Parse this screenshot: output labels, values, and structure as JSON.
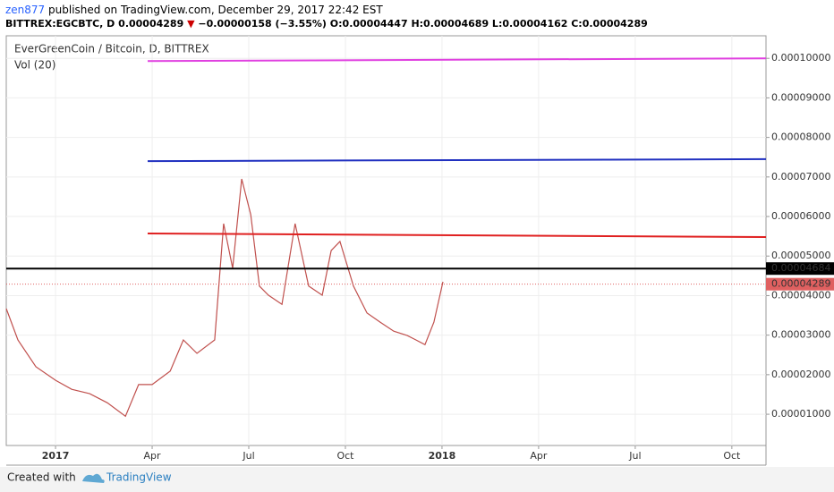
{
  "header": {
    "user": "zen877",
    "published": "published on TradingView.com, December 29, 2017 22:42 EST",
    "symbol": "BITTREX:EGCBTC, D",
    "price": "0.00004289",
    "change": "−0.00000158 (−3.55%)",
    "ohlc": "O:0.00004447 H:0.00004689 L:0.00004162 C:0.00004289"
  },
  "footer": {
    "created": "Created with",
    "brand": "TradingView"
  },
  "chart_data": {
    "type": "line",
    "title": "EverGreenCoin / Bitcoin, D, BITTREX",
    "subtitle": "Vol (20)",
    "xlim": [
      -1.53,
      22.06
    ],
    "xticks": [
      {
        "value": 0,
        "label": "2017"
      },
      {
        "value": 3,
        "label": "Apr"
      },
      {
        "value": 6,
        "label": "Jul"
      },
      {
        "value": 9,
        "label": "Oct"
      },
      {
        "value": 12,
        "label": "2018"
      },
      {
        "value": 15,
        "label": "Apr"
      },
      {
        "value": 18,
        "label": "Jul"
      },
      {
        "value": 21,
        "label": "Oct"
      }
    ],
    "ylim": [
      2.1e-06,
      0.0001057
    ],
    "yticks": [
      {
        "value": 1e-05,
        "label": "0.00001000"
      },
      {
        "value": 2e-05,
        "label": "0.00002000"
      },
      {
        "value": 3e-05,
        "label": "0.00003000"
      },
      {
        "value": 4e-05,
        "label": "0.00004000"
      },
      {
        "value": 5e-05,
        "label": "0.00005000"
      },
      {
        "value": 6e-05,
        "label": "0.00006000"
      },
      {
        "value": 7e-05,
        "label": "0.00007000"
      },
      {
        "value": 8e-05,
        "label": "0.00008000"
      },
      {
        "value": 9e-05,
        "label": "0.00009000"
      },
      {
        "value": 0.0001,
        "label": "0.00010000"
      }
    ],
    "series": [
      {
        "color": "#c0504d",
        "x": [
          -1.53,
          -1.17,
          -0.61,
          0,
          0.5,
          1.06,
          1.61,
          2.17,
          2.58,
          3,
          3.56,
          3.97,
          4.39,
          4.94,
          5.22,
          5.5,
          5.78,
          6.06,
          6.33,
          6.61,
          7.03,
          7.44,
          7.86,
          8.28,
          8.56,
          8.83,
          9.25,
          9.67,
          10.08,
          10.5,
          10.92,
          11.19,
          11.47,
          11.75,
          12.03
        ],
        "values": [
          3.67e-05,
          2.88e-05,
          2.2e-05,
          1.86e-05,
          1.63e-05,
          1.52e-05,
          1.29e-05,
          9.5e-06,
          1.75e-05,
          1.75e-05,
          2.09e-05,
          2.88e-05,
          2.54e-05,
          2.88e-05,
          5.82e-05,
          4.69e-05,
          6.95e-05,
          6.05e-05,
          4.24e-05,
          4.01e-05,
          3.78e-05,
          5.82e-05,
          4.24e-05,
          4.01e-05,
          5.14e-05,
          5.37e-05,
          4.24e-05,
          3.56e-05,
          3.33e-05,
          3.1e-05,
          2.99e-05,
          2.88e-05,
          2.76e-05,
          3.33e-05,
          4.35e-05
        ]
      }
    ],
    "levels": [
      {
        "color": "#e040e0",
        "x": [
          2.86,
          22.06
        ],
        "values": [
          9.93e-05,
          0.0001
        ]
      },
      {
        "color": "#2030c0",
        "x": [
          2.86,
          22.06
        ],
        "values": [
          7.4e-05,
          7.45e-05
        ]
      },
      {
        "color": "#e02020",
        "x": [
          2.86,
          22.06
        ],
        "values": [
          5.57e-05,
          5.48e-05
        ]
      },
      {
        "color": "#000000",
        "x": [
          -1.53,
          22.06
        ],
        "values": [
          4.684e-05,
          4.684e-05
        ]
      }
    ],
    "markers": [
      {
        "value": 4.684e-05,
        "label": "0.00004684",
        "color": "#000000"
      },
      {
        "value": 4.289e-05,
        "label": "0.00004289",
        "color": "#e06060"
      }
    ]
  }
}
